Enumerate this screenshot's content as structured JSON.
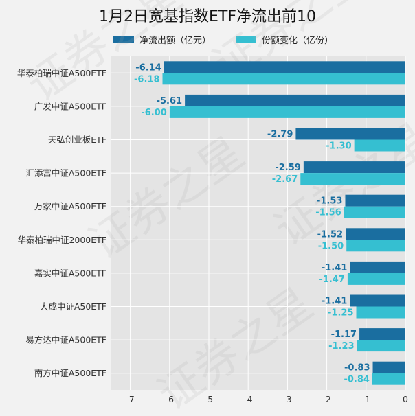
{
  "chart_data": {
    "type": "bar",
    "orientation": "horizontal",
    "title": "1月2日宽基指数ETF净流出前10",
    "categories": [
      "华泰柏瑞中证A500ETF",
      "广发中证A500ETF",
      "天弘创业板ETF",
      "汇添富中证A500ETF",
      "万家中证A500ETF",
      "华泰柏瑞中证2000ETF",
      "嘉实中证A500ETF",
      "大成中证A50ETF",
      "易方达中证A500ETF",
      "南方中证A500ETF"
    ],
    "series": [
      {
        "name": "净流出额（亿元）",
        "color": "#1a6ea0",
        "values": [
          -6.14,
          -5.61,
          -2.79,
          -2.59,
          -1.53,
          -1.52,
          -1.41,
          -1.41,
          -1.17,
          -0.83
        ]
      },
      {
        "name": "份额变化（亿份）",
        "color": "#35bfd1",
        "values": [
          -6.18,
          -6.0,
          -1.3,
          -2.67,
          -1.56,
          -1.5,
          -1.47,
          -1.25,
          -1.23,
          -0.84
        ]
      }
    ],
    "xlim": [
      -7.5,
      0
    ],
    "xticks": [
      -7,
      -6,
      -5,
      -4,
      -3,
      -2,
      -1,
      0
    ],
    "grid": true,
    "legend_position": "top",
    "data_labels": true,
    "watermark_text": "证券之星"
  }
}
